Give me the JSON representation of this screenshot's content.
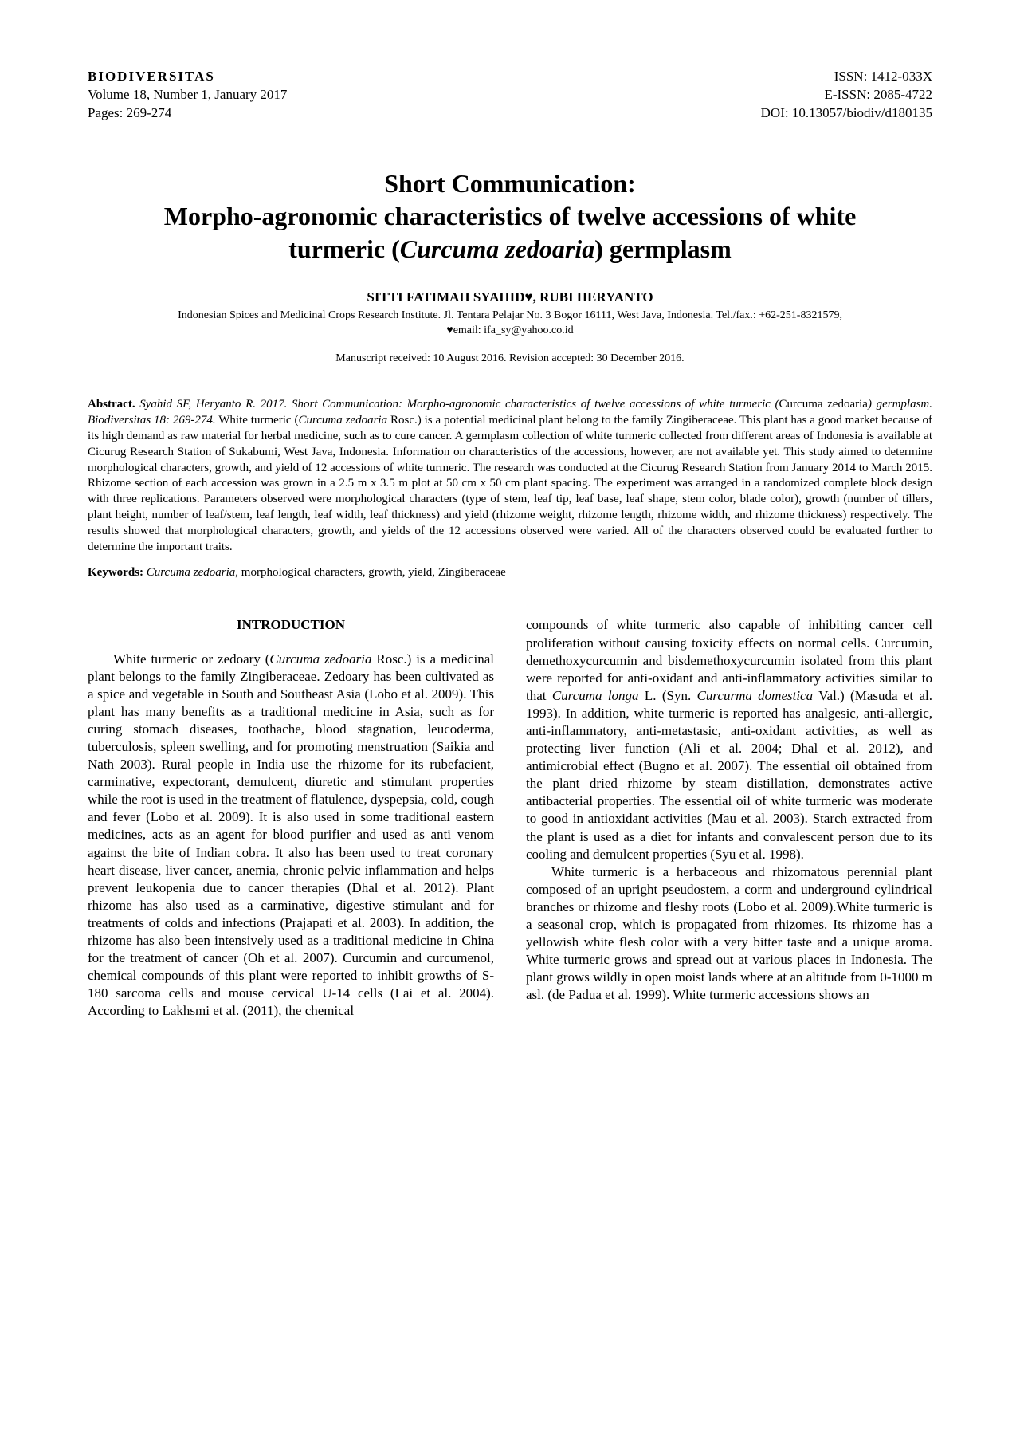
{
  "header": {
    "journal": "BIODIVERSITAS",
    "volume_line": "Volume 18, Number 1, January 2017",
    "pages_line": "Pages: 269-274",
    "issn": "ISSN: 1412-033X",
    "eissn": "E-ISSN: 2085-4722",
    "doi": "DOI: 10.13057/biodiv/d180135"
  },
  "title": {
    "line1": "Short Communication:",
    "line2_a": "Morpho-agronomic characteristics of twelve accessions of white",
    "line3_a": "turmeric (",
    "line3_it": "Curcuma zedoaria",
    "line3_b": ") germplasm"
  },
  "authors": "SITTI FATIMAH SYAHID♥, RUBI HERYANTO",
  "affiliation_line1": "Indonesian Spices and Medicinal Crops Research Institute. Jl. Tentara Pelajar No. 3 Bogor 16111, West Java, Indonesia. Tel./fax.: +62-251-8321579,",
  "affiliation_line2": "♥email: ifa_sy@yahoo.co.id",
  "manuscript_dates": "Manuscript received: 10 August 2016. Revision accepted: 30 December 2016.",
  "abstract": {
    "label": "Abstract.",
    "citation_prefix": " Syahid SF, Heryanto R. 2017. Short Communication: Morpho-agronomic characteristics of twelve accessions of white turmeric (",
    "citation_species_plain": "Curcuma zedoaria",
    "citation_suffix": ") germplasm. Biodiversitas 18: 269-274.",
    "body_a": " White turmeric (",
    "body_species": "Curcuma zedoaria",
    "body_b": " Rosc.) is a potential medicinal plant belong to the family Zingiberaceae. This plant has a good market because of its high demand as raw material for herbal medicine, such as to cure cancer. A germplasm collection of white turmeric collected from different areas of Indonesia is available at Cicurug Research Station of Sukabumi, West Java, Indonesia. Information on characteristics of the accessions, however, are not available yet. This study aimed to determine morphological characters, growth, and yield of 12 accessions of white turmeric. The research was conducted at the Cicurug Research Station from January 2014 to March 2015. Rhizome section of each accession was grown in a 2.5 m x 3.5 m plot at 50 cm x 50 cm plant spacing. The experiment was arranged in a randomized complete block design with three replications. Parameters observed were morphological characters (type of stem, leaf tip, leaf base, leaf shape, stem color, blade color), growth (number of tillers, plant height, number of leaf/stem, leaf length, leaf width, leaf thickness) and yield (rhizome weight, rhizome length, rhizome width, and rhizome thickness) respectively. The results showed that morphological characters, growth, and yields of the 12 accessions observed were varied. All of the characters observed could be evaluated further to determine the important traits."
  },
  "keywords": {
    "label": "Keywords:",
    "species": " Curcuma zedoaria",
    "rest": ", morphological characters, growth, yield, Zingiberaceae"
  },
  "intro_heading": "INTRODUCTION",
  "col1": {
    "p1_a": "White turmeric or zedoary (",
    "p1_it": "Curcuma zedoaria",
    "p1_b": " Rosc.) is a medicinal plant belongs to the family Zingiberaceae. Zedoary has been cultivated as a spice and vegetable in South and Southeast Asia (Lobo et al. 2009). This plant has many benefits as a traditional medicine in Asia, such as for curing stomach diseases, toothache, blood stagnation, leucoderma, tuberculosis, spleen swelling, and for promoting menstruation (Saikia and Nath 2003). Rural people in India use the rhizome for its rubefacient, carminative, expectorant, demulcent, diuretic and stimulant properties while the root is used in the treatment of flatulence, dyspepsia, cold, cough and fever (Lobo et al. 2009). It is also used in some traditional eastern medicines, acts as an agent for blood purifier and used as anti venom against the bite of Indian cobra. It also has been used to treat coronary heart disease, liver cancer, anemia, chronic pelvic inflammation and helps prevent leukopenia due to cancer therapies (Dhal et al. 2012). Plant rhizome has also used as a carminative, digestive stimulant and for treatments of colds and infections (Prajapati et al. 2003). In addition, the rhizome has also been intensively used as a traditional medicine in China for the treatment of cancer (Oh et al. 2007). Curcumin and curcumenol, chemical compounds of this plant were reported to inhibit growths of S-180 sarcoma cells and mouse cervical U-14 cells (Lai et al. 2004). According to Lakhsmi et al. (2011), the chemical"
  },
  "col2": {
    "p1_a": "compounds of white turmeric also capable of inhibiting cancer cell proliferation without causing toxicity effects on normal cells. Curcumin, demethoxycurcumin and bisdemethoxycurcumin isolated from this plant were reported for anti-oxidant and anti-inflammatory activities similar to that ",
    "p1_it1": "Curcuma longa",
    "p1_b": " L. (Syn. ",
    "p1_it2": "Curcurma domestica",
    "p1_c": " Val.) (Masuda et al. 1993). In addition, white turmeric is reported has analgesic, anti-allergic, anti-inflammatory, anti-metastasic, anti-oxidant activities, as well as protecting liver function (Ali et al. 2004; Dhal et al. 2012), and antimicrobial effect (Bugno et al. 2007). The essential oil obtained from the plant dried rhizome by steam distillation, demonstrates active antibacterial properties. The essential oil of white turmeric was moderate to good in antioxidant activities (Mau et al. 2003). Starch extracted from the plant is used as a diet for infants and convalescent person due to its cooling and demulcent properties (Syu et al. 1998).",
    "p2": "White turmeric is a herbaceous and rhizomatous perennial plant composed of an upright pseudostem, a corm and underground cylindrical branches or rhizome and fleshy roots (Lobo et al. 2009).White turmeric is a seasonal crop, which is propagated from rhizomes. Its rhizome has a yellowish white flesh color with a very bitter taste and a unique aroma. White turmeric grows and spread out at various places in Indonesia. The plant grows wildly in open moist lands where at an altitude from 0-1000 m asl. (de Padua et al. 1999). White turmeric accessions shows an"
  }
}
